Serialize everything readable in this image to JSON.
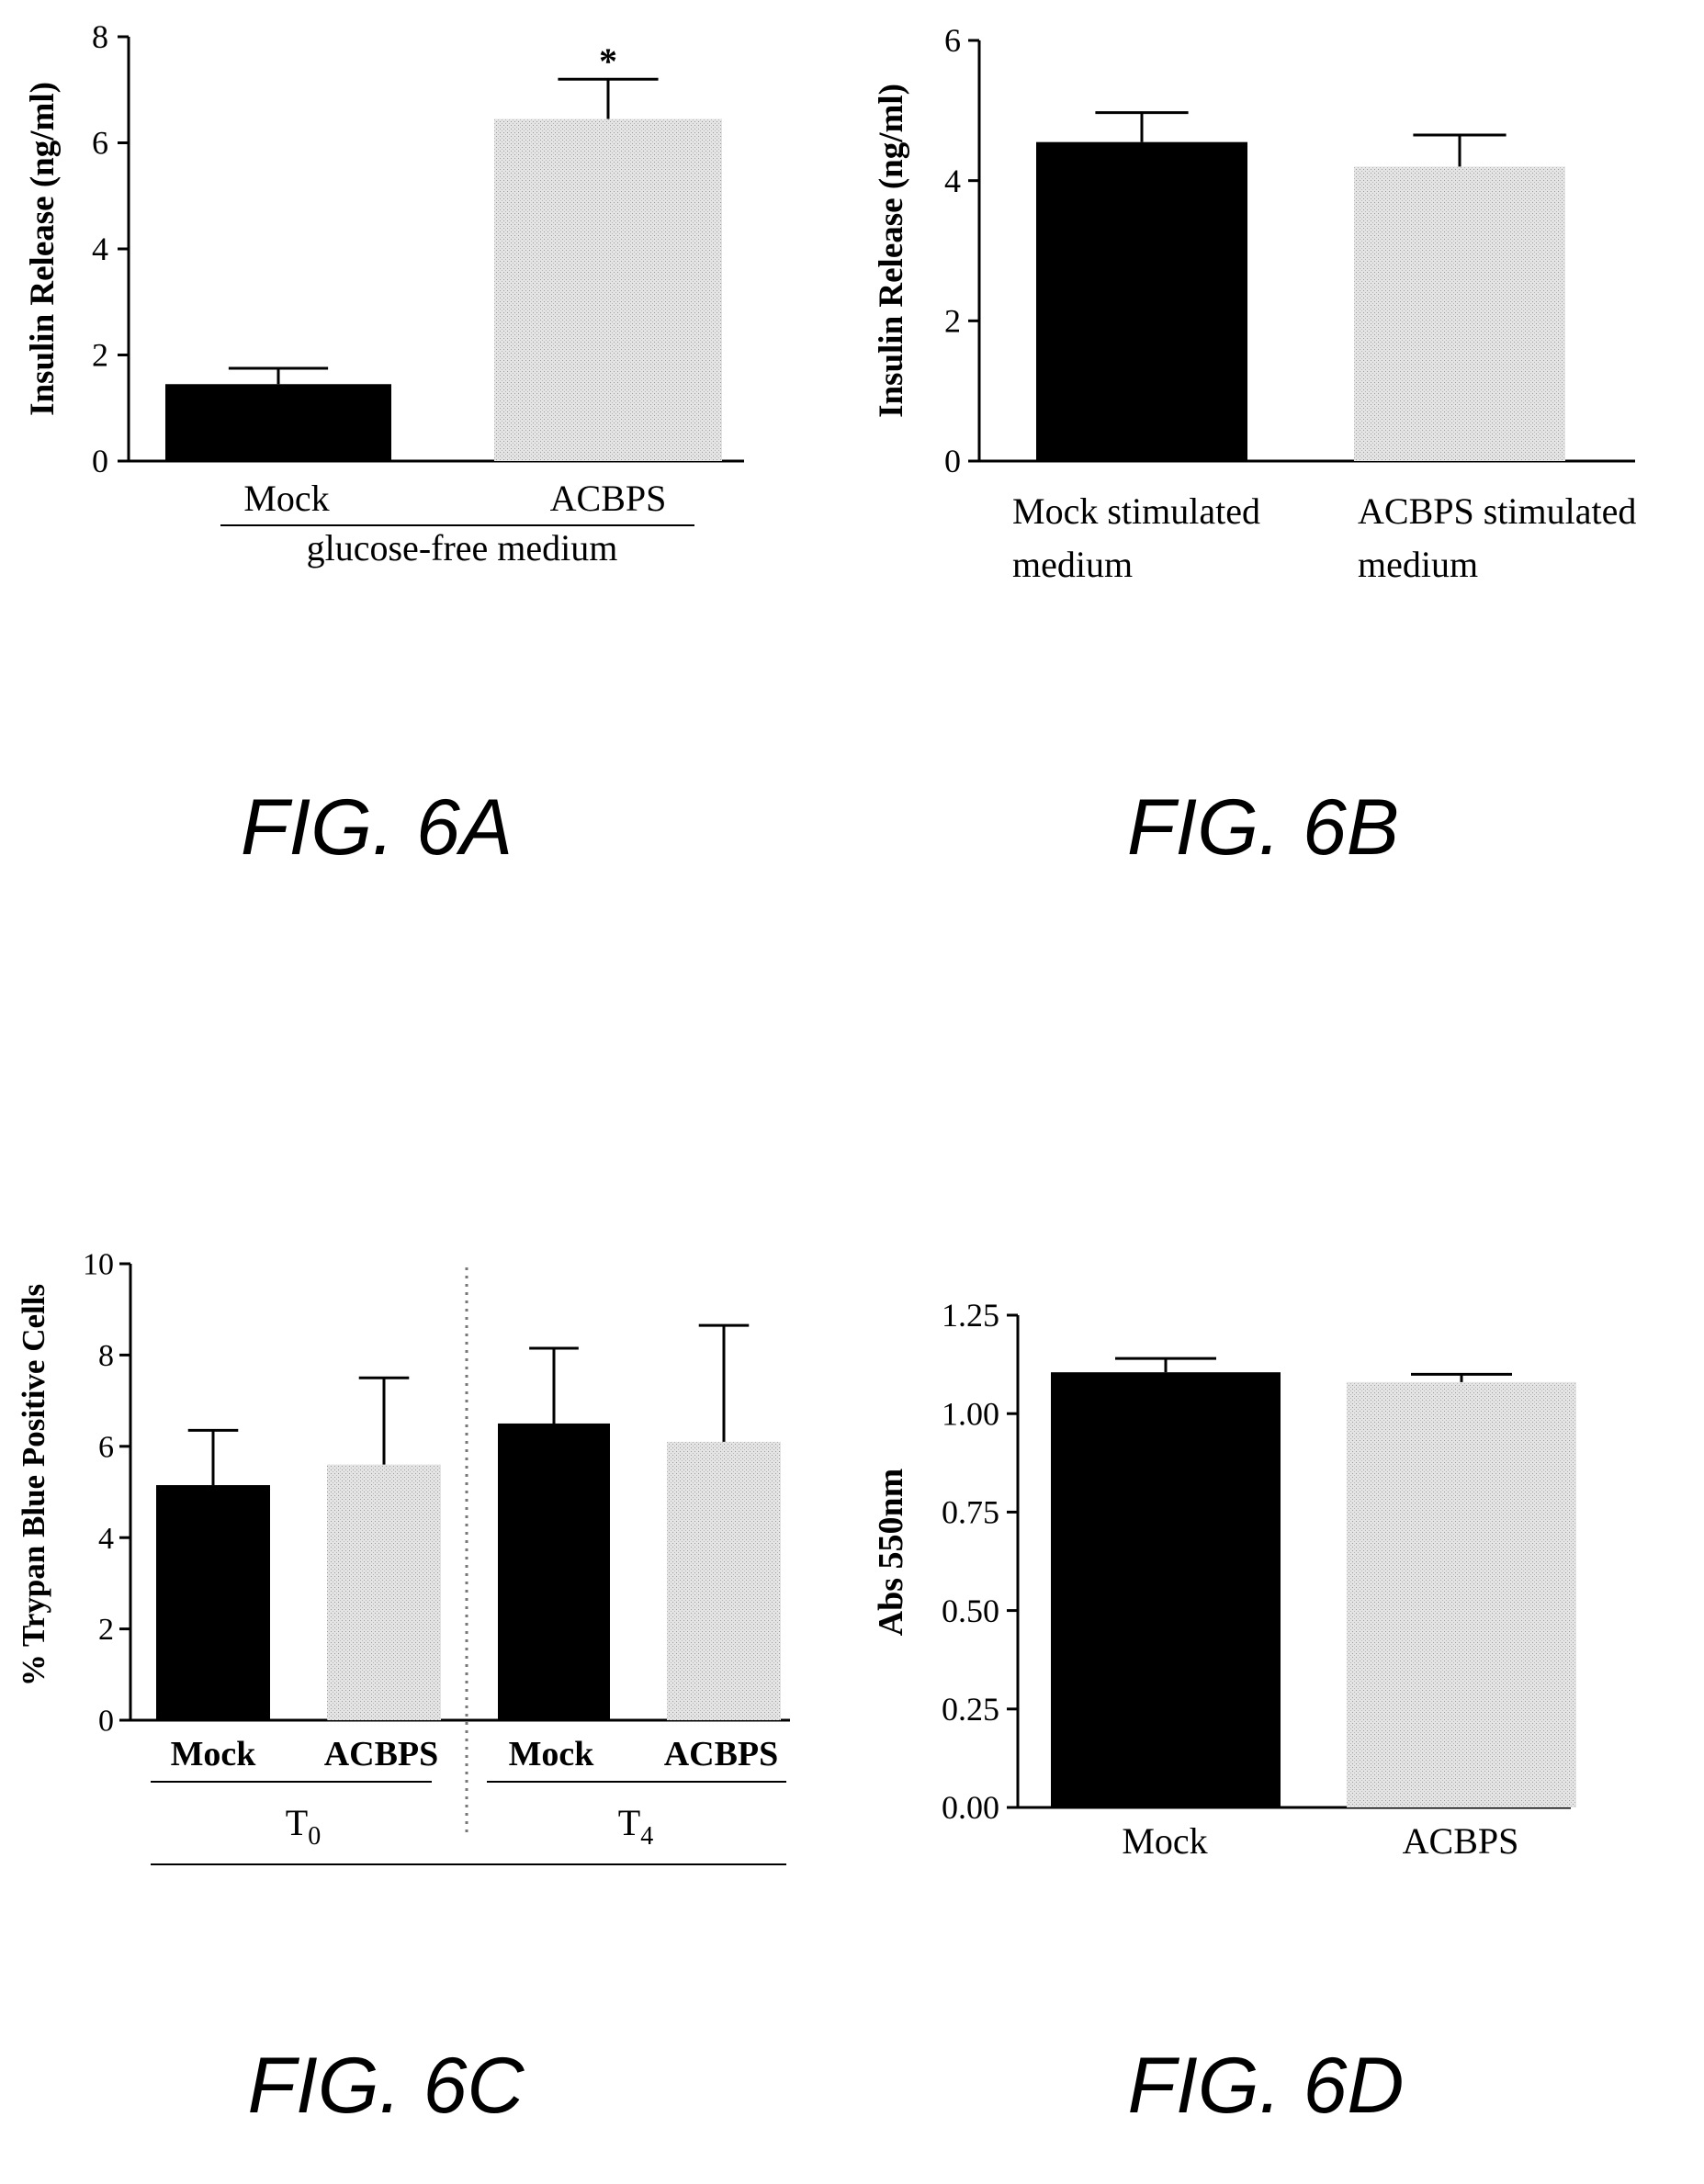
{
  "colors": {
    "mock": "#000000",
    "acbps": "#d9d9d9",
    "axis": "#000000"
  },
  "chart_data": [
    {
      "id": "6A",
      "type": "bar",
      "caption": "FIG. 6A",
      "ylabel": "Insulin Release  (ng/ml)",
      "ylim": [
        0,
        8
      ],
      "yticks": [
        "0",
        "2",
        "4",
        "6",
        "8"
      ],
      "categories": [
        "Mock",
        "ACBPS"
      ],
      "values": [
        1.45,
        6.45
      ],
      "errors": [
        0.3,
        0.75
      ],
      "colors": [
        "#000000",
        "#d9d9d9"
      ],
      "annotations": [
        "",
        "*"
      ],
      "group_labels": [
        "glucose-free medium"
      ]
    },
    {
      "id": "6B",
      "type": "bar",
      "caption": "FIG. 6B",
      "ylabel": "Insulin Release  (ng/ml)",
      "ylim": [
        0,
        6
      ],
      "yticks": [
        "0",
        "2",
        "4",
        "6"
      ],
      "categories": [
        "Mock stimulated medium",
        "ACBPS stimulated medium"
      ],
      "category_lines": [
        [
          "Mock stimulated",
          "medium"
        ],
        [
          "ACBPS stimulated",
          "medium"
        ]
      ],
      "values": [
        4.55,
        4.2
      ],
      "errors": [
        0.42,
        0.45
      ],
      "colors": [
        "#000000",
        "#d9d9d9"
      ]
    },
    {
      "id": "6C",
      "type": "bar",
      "caption": "FIG. 6C",
      "ylabel": "% Trypan Blue Positive Cells",
      "ylim": [
        0,
        10
      ],
      "yticks": [
        "0",
        "2",
        "4",
        "6",
        "8",
        "10"
      ],
      "categories": [
        "Mock",
        "ACBPS",
        "Mock",
        "ACBPS"
      ],
      "values": [
        5.15,
        5.6,
        6.5,
        6.1
      ],
      "errors": [
        1.2,
        1.9,
        1.65,
        2.55
      ],
      "colors": [
        "#000000",
        "#d9d9d9",
        "#000000",
        "#d9d9d9"
      ],
      "groups": [
        {
          "label": "T",
          "sub": "0"
        },
        {
          "label": "T",
          "sub": "4"
        }
      ]
    },
    {
      "id": "6D",
      "type": "bar",
      "caption": "FIG. 6D",
      "ylabel": "Abs 550nm",
      "ylim": [
        0,
        1.25
      ],
      "yticks": [
        "0.00",
        "0.25",
        "0.50",
        "0.75",
        "1.00",
        "1.25"
      ],
      "categories": [
        "Mock",
        "ACBPS"
      ],
      "values": [
        1.105,
        1.08
      ],
      "errors": [
        0.035,
        0.02
      ],
      "colors": [
        "#000000",
        "#d9d9d9"
      ]
    }
  ]
}
